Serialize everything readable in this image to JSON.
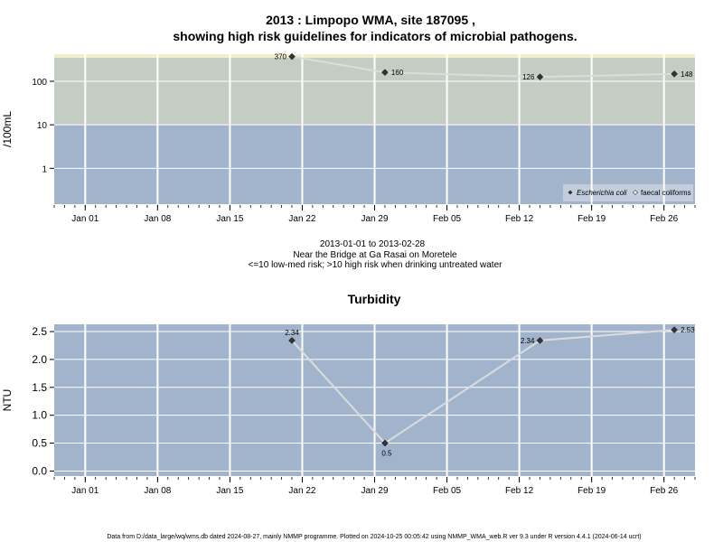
{
  "page": {
    "title_line1": "2013 : Limpopo WMA, site 187095 ,",
    "title_line2": "showing high risk guidelines for indicators of microbial pathogens.",
    "subtitle_line1": "2013-01-01 to 2013-02-28",
    "subtitle_line2": "Near the Bridge at Ga Rasai on Moretele",
    "subtitle_line3": "<=10 low-med risk; >10 high risk when drinking untreated water",
    "turbidity_title": "Turbidity",
    "footer": "Data from D:/data_large/wq/wms.db dated 2024-08-27, mainly NMMP programme. Plotted on 2024-10-25 00:05:42 using NMMP_WMA_web.R ver 9.3 under R version 4.4.1 (2024-06-14 ucrt)"
  },
  "colors": {
    "low_risk_band": "#a2b4cc",
    "high_risk_band": "#c3cdc3",
    "top_strip": "#f2eecb",
    "grid": "#ffffff",
    "series_line": "#dcdcdc",
    "marker": "#333333"
  },
  "chart_data": [
    {
      "type": "line",
      "ylabel": "/100mL",
      "y_scale": "log10",
      "yticks": [
        1,
        10,
        100
      ],
      "ytick_labels": [
        "1",
        "10",
        "100"
      ],
      "ylim": [
        0.15,
        420
      ],
      "risk_threshold": 10,
      "xlim": [
        "2012-12-29",
        "2013-03-01"
      ],
      "x_ticks": [
        "2013-01-01",
        "2013-01-08",
        "2013-01-15",
        "2013-01-22",
        "2013-01-29",
        "2013-02-05",
        "2013-02-12",
        "2013-02-19",
        "2013-02-26"
      ],
      "x_tick_labels": [
        "Jan 01",
        "Jan 08",
        "Jan 15",
        "Jan 22",
        "Jan 29",
        "Feb 05",
        "Feb 12",
        "Feb 19",
        "Feb 26"
      ],
      "legend": {
        "position": "bottom-right",
        "entries": [
          {
            "label": "Escherichia coli",
            "marker": "filled-diamond"
          },
          {
            "label": "faecal coliforms",
            "marker": "open-diamond"
          }
        ]
      },
      "series": [
        {
          "name": "Escherichia coli",
          "points": [
            {
              "x": "2013-01-21",
              "y": 370,
              "label": "370",
              "label_side": "left"
            },
            {
              "x": "2013-01-30",
              "y": 160,
              "label": "160",
              "label_side": "right"
            },
            {
              "x": "2013-02-14",
              "y": 126,
              "label": "126",
              "label_side": "left"
            },
            {
              "x": "2013-02-27",
              "y": 148,
              "label": "148",
              "label_side": "right"
            }
          ]
        }
      ]
    },
    {
      "type": "line",
      "title": "Turbidity",
      "ylabel": "NTU",
      "yticks": [
        0,
        0.5,
        1,
        1.5,
        2,
        2.5
      ],
      "ytick_labels": [
        "0.0",
        "0.5",
        "1.0",
        "1.5",
        "2.0",
        "2.5"
      ],
      "ylim": [
        -0.09,
        2.63
      ],
      "xlim": [
        "2012-12-29",
        "2013-03-01"
      ],
      "x_ticks": [
        "2013-01-01",
        "2013-01-08",
        "2013-01-15",
        "2013-01-22",
        "2013-01-29",
        "2013-02-05",
        "2013-02-12",
        "2013-02-19",
        "2013-02-26"
      ],
      "x_tick_labels": [
        "Jan 01",
        "Jan 08",
        "Jan 15",
        "Jan 22",
        "Jan 29",
        "Feb 05",
        "Feb 12",
        "Feb 19",
        "Feb 26"
      ],
      "series": [
        {
          "points": [
            {
              "x": "2013-01-21",
              "y": 2.34,
              "label": "2.34",
              "label_side": "above"
            },
            {
              "x": "2013-01-30",
              "y": 0.5,
              "label": "0.5",
              "label_side": "below"
            },
            {
              "x": "2013-02-14",
              "y": 2.34,
              "label": "2.34",
              "label_side": "left"
            },
            {
              "x": "2013-02-27",
              "y": 2.53,
              "label": "2.53",
              "label_side": "right"
            }
          ]
        }
      ]
    }
  ]
}
